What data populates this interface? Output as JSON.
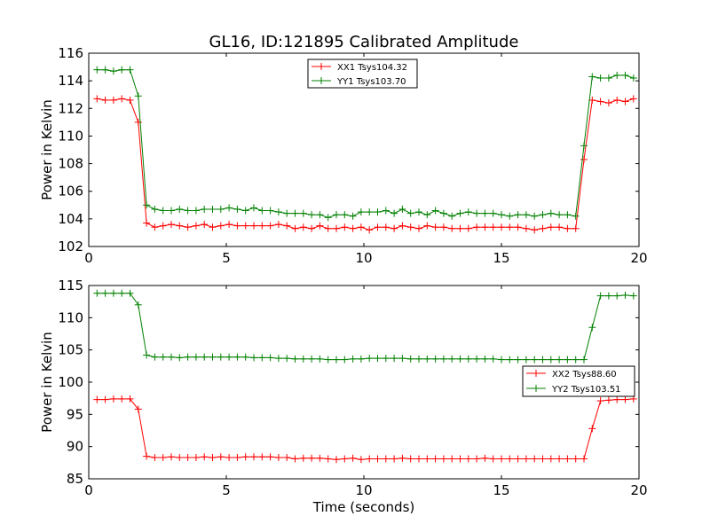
{
  "title": "GL16, ID:121895 Calibrated Amplitude",
  "colors": {
    "xx": "#ff0000",
    "yy": "#008000"
  },
  "chart_data": [
    {
      "type": "line",
      "xlabel": "",
      "ylabel": "Power in Kelvin",
      "xlim": [
        0,
        20
      ],
      "ylim": [
        102,
        116
      ],
      "xticks": [
        0,
        5,
        10,
        15,
        20
      ],
      "yticks": [
        102,
        104,
        106,
        108,
        110,
        112,
        114,
        116
      ],
      "legend_position": "top-center",
      "marker": "+",
      "x": [
        0.3,
        0.6,
        0.9,
        1.2,
        1.5,
        1.8,
        2.1,
        2.4,
        2.7,
        3.0,
        3.3,
        3.6,
        3.9,
        4.2,
        4.5,
        4.8,
        5.1,
        5.4,
        5.7,
        6.0,
        6.3,
        6.6,
        6.9,
        7.2,
        7.5,
        7.8,
        8.1,
        8.4,
        8.7,
        9.0,
        9.3,
        9.6,
        9.9,
        10.2,
        10.5,
        10.8,
        11.1,
        11.4,
        11.7,
        12.0,
        12.3,
        12.6,
        12.9,
        13.2,
        13.5,
        13.8,
        14.1,
        14.4,
        14.7,
        15.0,
        15.3,
        15.6,
        15.9,
        16.2,
        16.5,
        16.8,
        17.1,
        17.4,
        17.7,
        18.0,
        18.3,
        18.6,
        18.9,
        19.2,
        19.5,
        19.8
      ],
      "series": [
        {
          "name": "XX1 Tsys104.32",
          "color_key": "xx",
          "values": [
            112.7,
            112.6,
            112.6,
            112.7,
            112.6,
            111.0,
            103.7,
            103.4,
            103.5,
            103.6,
            103.5,
            103.4,
            103.5,
            103.6,
            103.4,
            103.5,
            103.6,
            103.5,
            103.5,
            103.5,
            103.5,
            103.5,
            103.6,
            103.5,
            103.3,
            103.4,
            103.3,
            103.5,
            103.3,
            103.3,
            103.4,
            103.3,
            103.4,
            103.2,
            103.4,
            103.4,
            103.3,
            103.5,
            103.4,
            103.3,
            103.5,
            103.4,
            103.4,
            103.3,
            103.3,
            103.3,
            103.4,
            103.4,
            103.4,
            103.4,
            103.4,
            103.4,
            103.3,
            103.2,
            103.3,
            103.4,
            103.4,
            103.3,
            103.3,
            108.3,
            112.6,
            112.5,
            112.4,
            112.6,
            112.5,
            112.7
          ]
        },
        {
          "name": "YY1 Tsys103.70",
          "color_key": "yy",
          "values": [
            114.8,
            114.8,
            114.7,
            114.8,
            114.8,
            112.9,
            105.0,
            104.7,
            104.6,
            104.6,
            104.7,
            104.6,
            104.6,
            104.7,
            104.7,
            104.7,
            104.8,
            104.7,
            104.6,
            104.8,
            104.6,
            104.6,
            104.5,
            104.4,
            104.4,
            104.4,
            104.3,
            104.3,
            104.1,
            104.3,
            104.3,
            104.2,
            104.5,
            104.5,
            104.5,
            104.6,
            104.4,
            104.7,
            104.4,
            104.5,
            104.3,
            104.6,
            104.4,
            104.2,
            104.4,
            104.5,
            104.4,
            104.4,
            104.4,
            104.3,
            104.2,
            104.3,
            104.3,
            104.2,
            104.3,
            104.4,
            104.3,
            104.3,
            104.2,
            109.3,
            114.3,
            114.2,
            114.2,
            114.4,
            114.4,
            114.2
          ]
        }
      ]
    },
    {
      "type": "line",
      "xlabel": "Time (seconds)",
      "ylabel": "Power in Kelvin",
      "xlim": [
        0,
        20
      ],
      "ylim": [
        85,
        115
      ],
      "xticks": [
        0,
        5,
        10,
        15,
        20
      ],
      "yticks": [
        85,
        90,
        95,
        100,
        105,
        110,
        115
      ],
      "legend_position": "center-right",
      "marker": "+",
      "x": [
        0.3,
        0.6,
        0.9,
        1.2,
        1.5,
        1.8,
        2.1,
        2.4,
        2.7,
        3.0,
        3.3,
        3.6,
        3.9,
        4.2,
        4.5,
        4.8,
        5.1,
        5.4,
        5.7,
        6.0,
        6.3,
        6.6,
        6.9,
        7.2,
        7.5,
        7.8,
        8.1,
        8.4,
        8.7,
        9.0,
        9.3,
        9.6,
        9.9,
        10.2,
        10.5,
        10.8,
        11.1,
        11.4,
        11.7,
        12.0,
        12.3,
        12.6,
        12.9,
        13.2,
        13.5,
        13.8,
        14.1,
        14.4,
        14.7,
        15.0,
        15.3,
        15.6,
        15.9,
        16.2,
        16.5,
        16.8,
        17.1,
        17.4,
        17.7,
        18.0,
        18.3,
        18.6,
        18.9,
        19.2,
        19.5,
        19.8
      ],
      "series": [
        {
          "name": "XX2 Tsys88.60",
          "color_key": "xx",
          "values": [
            97.3,
            97.3,
            97.4,
            97.4,
            97.4,
            95.8,
            88.5,
            88.3,
            88.3,
            88.4,
            88.3,
            88.3,
            88.3,
            88.4,
            88.3,
            88.4,
            88.3,
            88.3,
            88.4,
            88.4,
            88.4,
            88.4,
            88.3,
            88.3,
            88.1,
            88.2,
            88.2,
            88.2,
            88.1,
            88.0,
            88.1,
            88.2,
            88.0,
            88.1,
            88.1,
            88.1,
            88.1,
            88.2,
            88.1,
            88.1,
            88.1,
            88.1,
            88.1,
            88.1,
            88.1,
            88.1,
            88.1,
            88.2,
            88.1,
            88.1,
            88.1,
            88.1,
            88.1,
            88.1,
            88.1,
            88.1,
            88.1,
            88.1,
            88.1,
            88.1,
            92.8,
            97.1,
            97.2,
            97.3,
            97.3,
            97.4
          ]
        },
        {
          "name": "YY2 Tsys103.51",
          "color_key": "yy",
          "values": [
            113.8,
            113.8,
            113.8,
            113.8,
            113.8,
            112.0,
            104.2,
            103.9,
            103.9,
            103.9,
            103.8,
            103.9,
            103.9,
            103.9,
            103.9,
            103.9,
            103.9,
            103.9,
            103.9,
            103.8,
            103.8,
            103.8,
            103.7,
            103.7,
            103.6,
            103.6,
            103.6,
            103.6,
            103.5,
            103.5,
            103.5,
            103.6,
            103.6,
            103.7,
            103.7,
            103.7,
            103.7,
            103.7,
            103.6,
            103.6,
            103.6,
            103.6,
            103.6,
            103.6,
            103.6,
            103.6,
            103.6,
            103.6,
            103.6,
            103.5,
            103.5,
            103.5,
            103.5,
            103.5,
            103.5,
            103.5,
            103.5,
            103.5,
            103.5,
            103.5,
            108.5,
            113.4,
            113.4,
            113.4,
            113.5,
            113.4
          ]
        }
      ]
    }
  ]
}
